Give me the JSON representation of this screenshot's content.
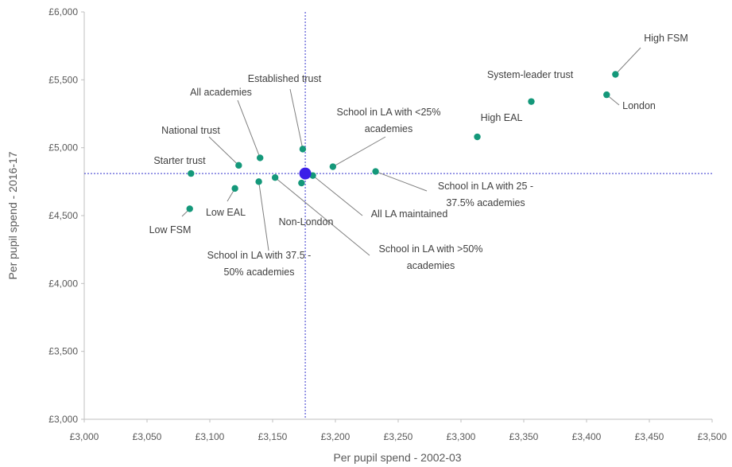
{
  "chart_data": {
    "type": "scatter",
    "xlabel": "Per pupil spend - 2002-03",
    "ylabel": "Per pupil spend - 2016-17",
    "xlim": [
      3000,
      3500
    ],
    "ylim": [
      3000,
      6000
    ],
    "x_ticks": [
      3000,
      3050,
      3100,
      3150,
      3200,
      3250,
      3300,
      3350,
      3400,
      3450,
      3500
    ],
    "x_tick_labels": [
      "£3,000",
      "£3,050",
      "£3,100",
      "£3,150",
      "£3,200",
      "£3,250",
      "£3,300",
      "£3,350",
      "£3,400",
      "£3,450",
      "£3,500"
    ],
    "y_ticks": [
      3000,
      3500,
      4000,
      4500,
      5000,
      5500,
      6000
    ],
    "y_tick_labels": [
      "£3,000",
      "£3,500",
      "£4,000",
      "£4,500",
      "£5,000",
      "£5,500",
      "£6,000"
    ],
    "grid": false,
    "reference_point": {
      "x": 3176,
      "y": 4810,
      "color": "#3a1fe8"
    },
    "reference_lines": {
      "x": 3176,
      "y": 4810,
      "color": "#3333cc"
    },
    "point_color": "#14987a",
    "points": [
      {
        "label": "High FSM",
        "x": 3423,
        "y": 5540
      },
      {
        "label": "System-leader trust",
        "x": 3356,
        "y": 5340
      },
      {
        "label": "London",
        "x": 3416,
        "y": 5390
      },
      {
        "label": "High EAL",
        "x": 3313,
        "y": 5080
      },
      {
        "label": "Established trust",
        "x": 3174,
        "y": 4990
      },
      {
        "label": "All academies",
        "x": 3140,
        "y": 4925
      },
      {
        "label": "National trust",
        "x": 3123,
        "y": 4870
      },
      {
        "label": "School in LA with <25% academies",
        "x": 3198,
        "y": 4860
      },
      {
        "label": "Starter trust",
        "x": 3085,
        "y": 4810
      },
      {
        "label": "School in LA with 25 - 37.5% academies",
        "x": 3232,
        "y": 4825
      },
      {
        "label": "All LA maintained",
        "x": 3182,
        "y": 4795
      },
      {
        "label": "Non-London",
        "x": 3173,
        "y": 4740
      },
      {
        "label": "School in LA with >50% academies",
        "x": 3152,
        "y": 4780
      },
      {
        "label": "School in LA with 37.5 - 50% academies",
        "x": 3139,
        "y": 4750
      },
      {
        "label": "Low EAL",
        "x": 3120,
        "y": 4700
      },
      {
        "label": "Low FSM",
        "x": 3084,
        "y": 4550
      }
    ]
  }
}
